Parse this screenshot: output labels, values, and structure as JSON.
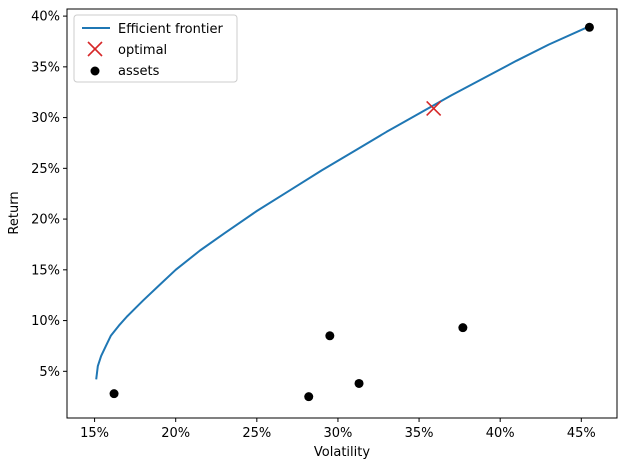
{
  "chart_data": {
    "type": "scatter",
    "xlabel": "Volatility",
    "ylabel": "Return",
    "xlim": [
      0.133,
      0.472
    ],
    "ylim": [
      0.004,
      0.407
    ],
    "x_ticks": [
      0.15,
      0.2,
      0.25,
      0.3,
      0.35,
      0.4,
      0.45
    ],
    "x_tick_labels": [
      "15%",
      "20%",
      "25%",
      "30%",
      "35%",
      "40%",
      "45%"
    ],
    "y_ticks": [
      0.05,
      0.1,
      0.15,
      0.2,
      0.25,
      0.3,
      0.35,
      0.4
    ],
    "y_tick_labels": [
      "5%",
      "10%",
      "15%",
      "20%",
      "25%",
      "30%",
      "35%",
      "40%"
    ],
    "grid": false,
    "legend_position": "top-left",
    "series": [
      {
        "name": "Efficient frontier",
        "kind": "line",
        "color": "#1f77b4",
        "x": [
          0.151,
          0.152,
          0.154,
          0.157,
          0.16,
          0.165,
          0.17,
          0.175,
          0.18,
          0.19,
          0.2,
          0.215,
          0.23,
          0.25,
          0.27,
          0.29,
          0.31,
          0.33,
          0.35,
          0.37,
          0.39,
          0.41,
          0.43,
          0.455
        ],
        "y": [
          0.042,
          0.055,
          0.065,
          0.075,
          0.085,
          0.095,
          0.104,
          0.112,
          0.12,
          0.135,
          0.15,
          0.169,
          0.186,
          0.208,
          0.228,
          0.248,
          0.267,
          0.286,
          0.304,
          0.322,
          0.339,
          0.356,
          0.372,
          0.39
        ]
      },
      {
        "name": "optimal",
        "kind": "marker-x",
        "color": "#d62728",
        "x": [
          0.359
        ],
        "y": [
          0.309
        ]
      },
      {
        "name": "assets",
        "kind": "scatter",
        "color": "#000000",
        "x": [
          0.162,
          0.282,
          0.295,
          0.313,
          0.377,
          0.455
        ],
        "y": [
          0.028,
          0.025,
          0.085,
          0.038,
          0.093,
          0.389
        ]
      }
    ]
  }
}
